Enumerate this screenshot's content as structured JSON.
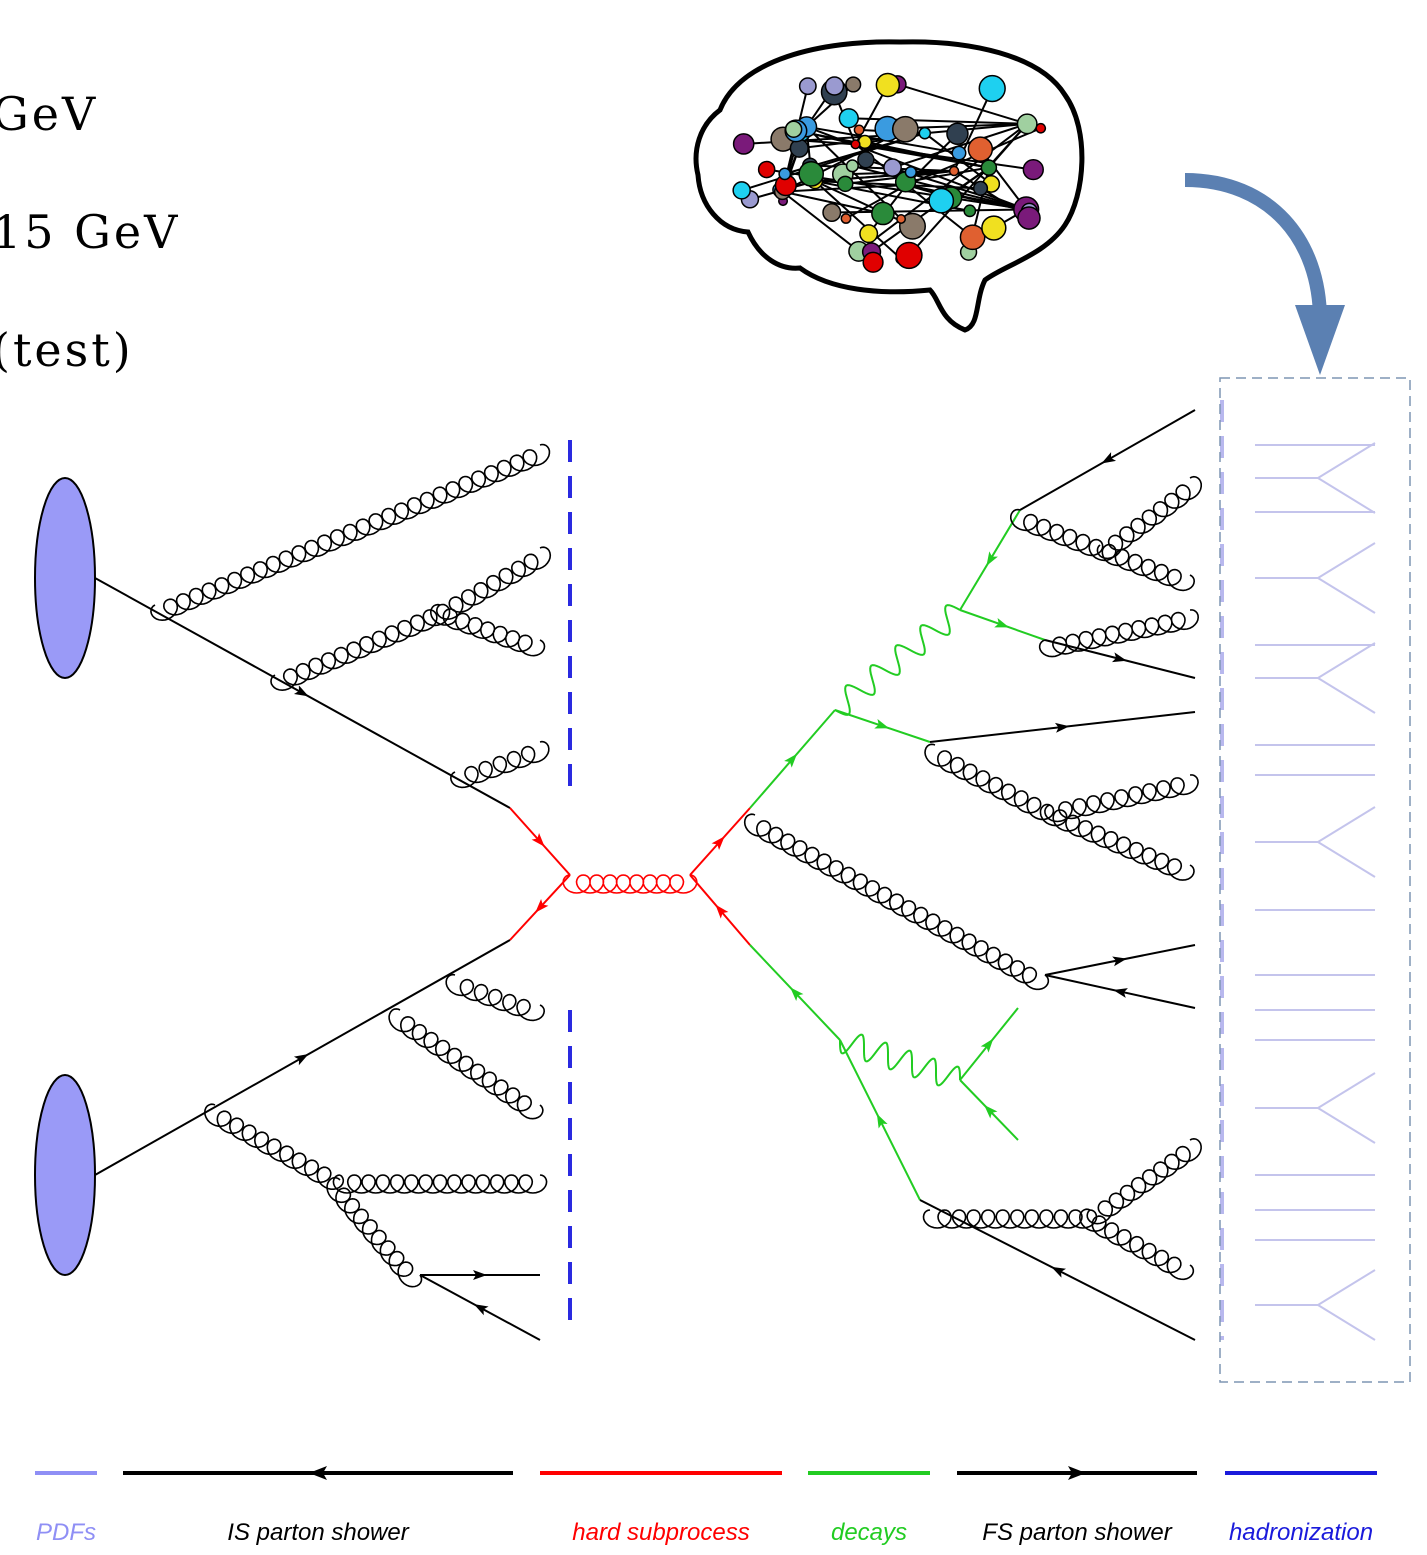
{
  "text_lines": [
    "GeV",
    "15 GeV",
    "(test)"
  ],
  "legend": [
    {
      "label": "PDFs",
      "color": "#8f8ff5"
    },
    {
      "label": "IS parton shower",
      "color": "#000000"
    },
    {
      "label": "hard subprocess",
      "color": "#ff0000"
    },
    {
      "label": "decays",
      "color": "#22cc22"
    },
    {
      "label": "FS parton shower",
      "color": "#000000"
    },
    {
      "label": "hadronization",
      "color": "#1a1adb"
    }
  ]
}
